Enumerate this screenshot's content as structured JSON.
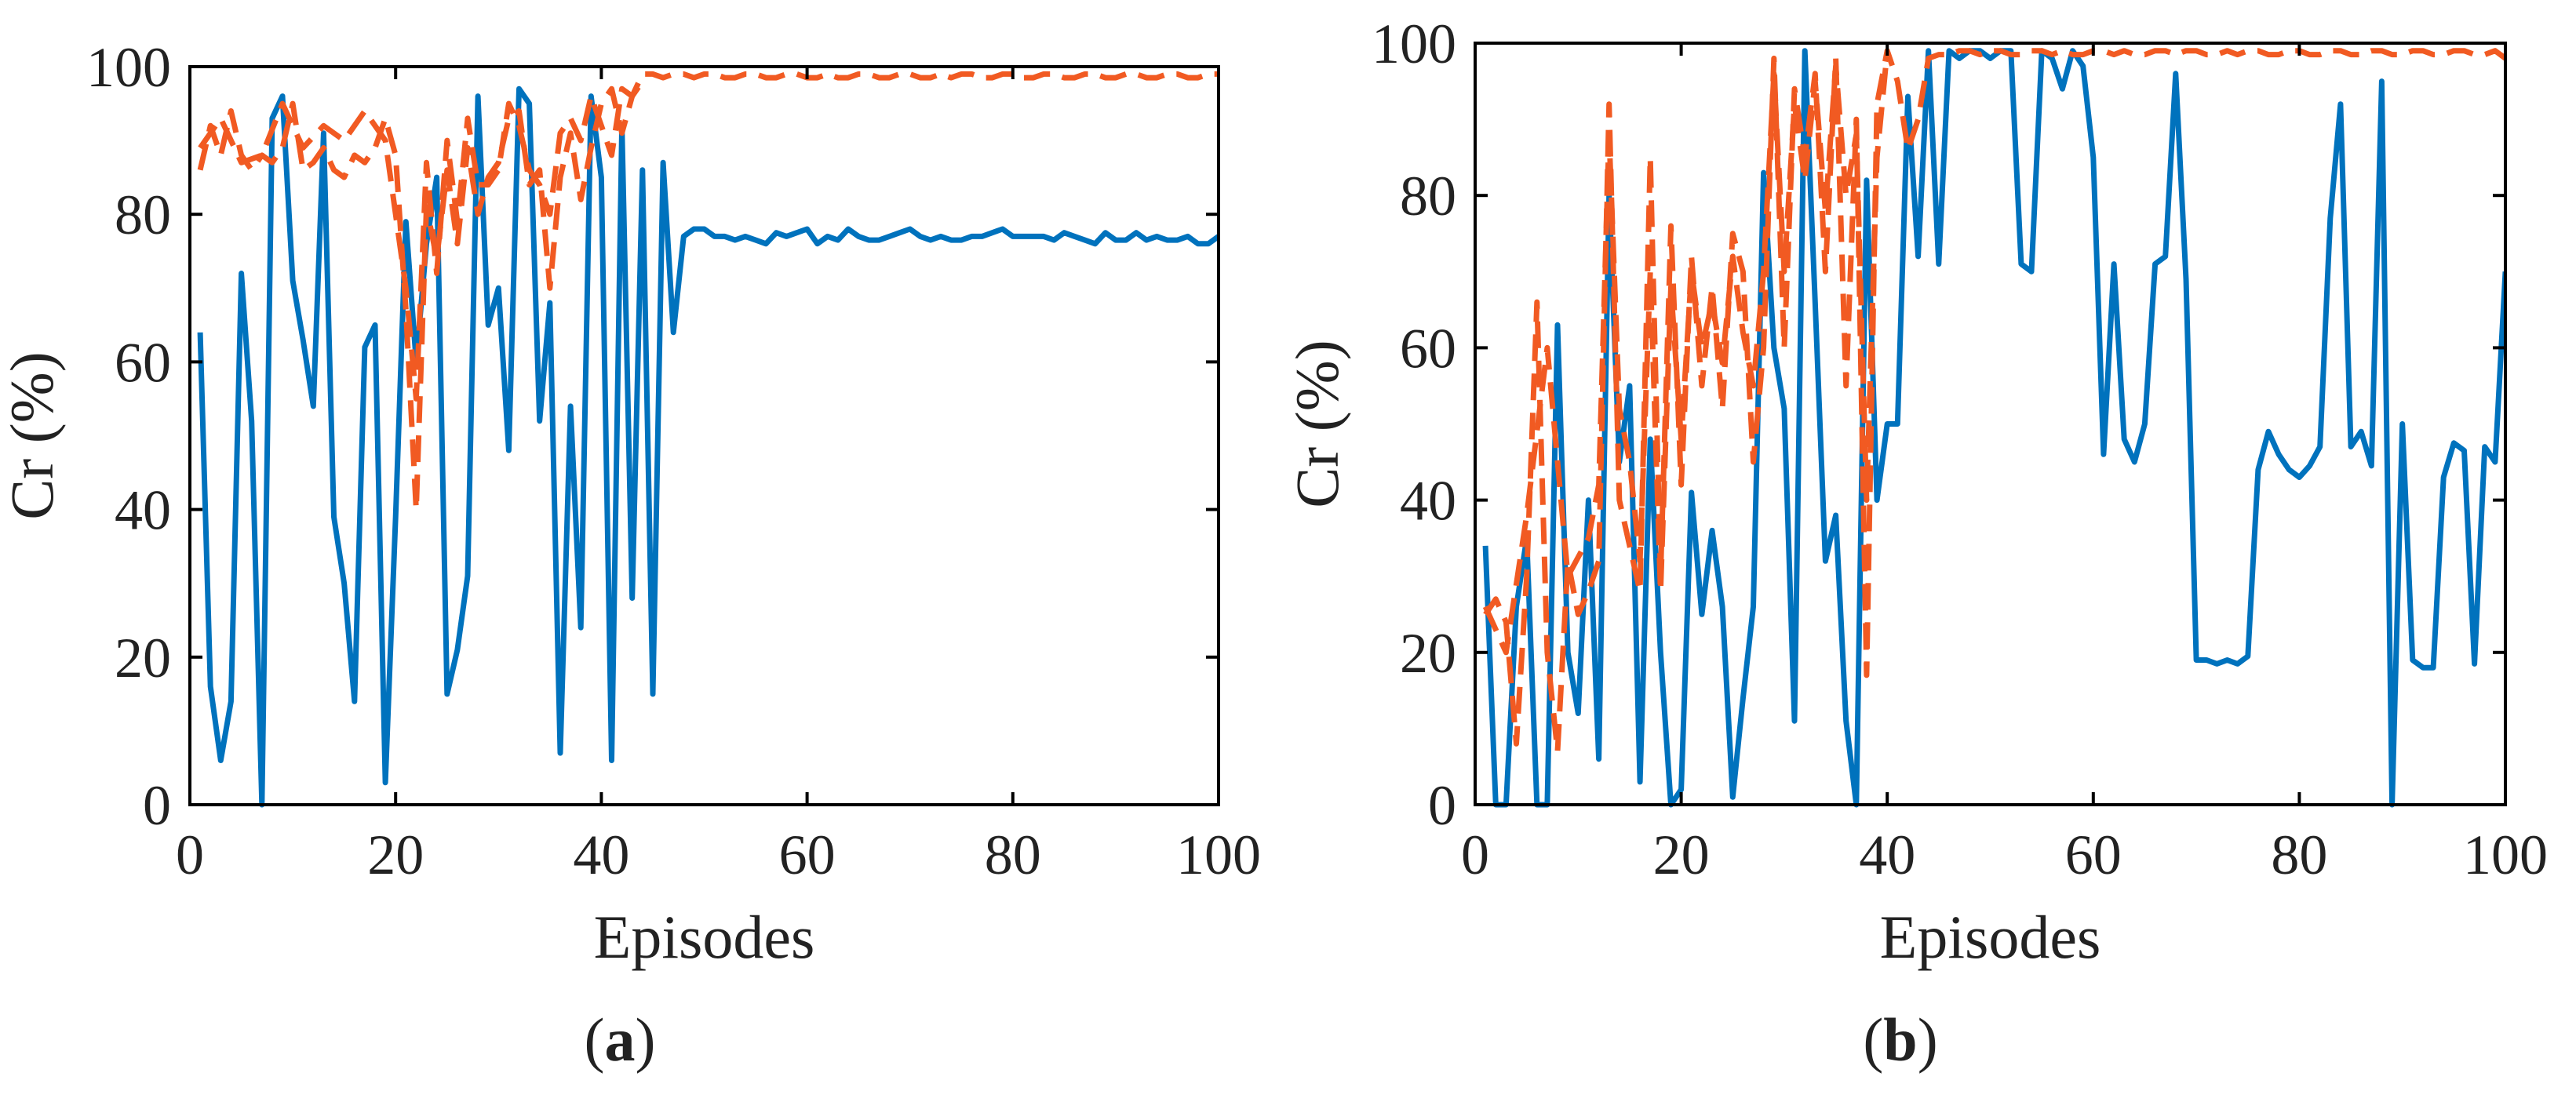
{
  "figure": {
    "panel_a_caption": {
      "open": "(",
      "letter": "a",
      "close": ")"
    },
    "panel_b_caption": {
      "open": "(",
      "letter": "b",
      "close": ")"
    }
  },
  "colors": {
    "blue": "#0072BD",
    "orange": "#F15A22",
    "axis": "#000000"
  },
  "chart_data": [
    {
      "type": "line",
      "panel": "a",
      "xlabel": "Episodes",
      "ylabel": "Cr (%)",
      "xlim": [
        0,
        100
      ],
      "ylim": [
        0,
        100
      ],
      "xticks": [
        0,
        20,
        40,
        60,
        80,
        100
      ],
      "yticks": [
        0,
        20,
        40,
        60,
        80,
        100
      ],
      "grid": false,
      "series": [
        {
          "name": "blue-solid",
          "color": "#0072BD",
          "style": "solid",
          "x": [
            1,
            2,
            3,
            4,
            5,
            6,
            7,
            8,
            9,
            10,
            11,
            12,
            13,
            14,
            15,
            16,
            17,
            18,
            19,
            20,
            21,
            22,
            23,
            24,
            25,
            26,
            27,
            28,
            29,
            30,
            31,
            32,
            33,
            34,
            35,
            36,
            37,
            38,
            39,
            40,
            41,
            42,
            43,
            44,
            45,
            46,
            47,
            48,
            49,
            50,
            51,
            52,
            53,
            54,
            55,
            56,
            57,
            58,
            59,
            60,
            61,
            62,
            63,
            64,
            65,
            66,
            67,
            68,
            69,
            70,
            71,
            72,
            73,
            74,
            75,
            76,
            77,
            78,
            79,
            80,
            81,
            82,
            83,
            84,
            85,
            86,
            87,
            88,
            89,
            90,
            91,
            92,
            93,
            94,
            95,
            96,
            97,
            98,
            99,
            100
          ],
          "y": [
            64,
            16,
            6,
            14,
            72,
            52,
            0,
            93,
            96,
            71,
            63,
            54,
            91,
            39,
            30,
            14,
            62,
            65,
            3,
            39,
            79,
            60,
            76,
            85,
            15,
            21,
            31,
            96,
            65,
            70,
            48,
            97,
            95,
            52,
            68,
            7,
            54,
            24,
            96,
            85,
            6,
            92,
            28,
            86,
            15,
            87,
            64,
            77,
            78,
            78,
            77,
            77,
            76.5,
            77,
            76.5,
            76,
            77.5,
            77,
            77.5,
            78,
            76,
            77,
            76.5,
            78,
            77,
            76.5,
            76.5,
            77,
            77.5,
            78,
            77,
            76.5,
            77,
            76.5,
            76.5,
            77,
            77,
            77.5,
            78,
            77,
            77,
            77,
            77,
            76.5,
            77.5,
            77,
            76.5,
            76,
            77.5,
            76.5,
            76.5,
            77.5,
            76.5,
            77,
            76.5,
            76.5,
            77,
            76,
            76,
            77
          ]
        },
        {
          "name": "orange-dashed-1",
          "color": "#F15A22",
          "style": "dashed",
          "x": [
            1,
            2,
            3,
            4,
            5,
            6,
            7,
            8,
            9,
            10,
            11,
            12,
            13,
            14,
            15,
            16,
            17,
            18,
            19,
            20,
            21,
            22,
            23,
            24,
            25,
            26,
            27,
            28,
            29,
            30,
            31,
            32,
            33,
            34,
            35,
            36,
            37,
            38,
            39,
            40,
            41,
            42,
            43,
            44,
            45,
            46,
            47,
            48,
            49,
            50,
            51,
            52,
            53,
            54,
            55,
            56,
            57,
            58,
            59,
            60,
            61,
            62,
            63,
            64,
            65,
            66,
            67,
            68,
            69,
            70,
            71,
            72,
            73,
            74,
            75,
            76,
            77,
            78,
            79,
            80,
            81,
            82,
            83,
            84,
            85,
            86,
            87,
            88,
            89,
            90,
            91,
            92,
            93,
            94,
            95,
            96,
            97,
            98,
            99,
            100
          ],
          "y": [
            86,
            92,
            88,
            94,
            88,
            86,
            88,
            87,
            89,
            95,
            86,
            87,
            89,
            86,
            85,
            88,
            87,
            89,
            93,
            88,
            67,
            40,
            81,
            74,
            86,
            76,
            89,
            80,
            85,
            87,
            93,
            94,
            84,
            86,
            70,
            85,
            91,
            82,
            89,
            95,
            97,
            91,
            96,
            99,
            99,
            98.5,
            99,
            99,
            98.5,
            99,
            99,
            98.5,
            98.5,
            99,
            99,
            98.5,
            98.5,
            99,
            99,
            98.5,
            98.5,
            99,
            98.5,
            98.5,
            99,
            99,
            98.5,
            98.5,
            99,
            99,
            98.5,
            98.5,
            99,
            98.5,
            99,
            99,
            98.5,
            98.5,
            99,
            99,
            98.5,
            98.5,
            99,
            99,
            98.5,
            98.5,
            99,
            99,
            98.5,
            98.5,
            99,
            99,
            98.5,
            98.5,
            99,
            99,
            98.5,
            98.5,
            99,
            99
          ]
        },
        {
          "name": "orange-dashed-2",
          "color": "#F15A22",
          "style": "dashed",
          "x": [
            1,
            3,
            5,
            7,
            9,
            11,
            13,
            15,
            17,
            19,
            21,
            22,
            23,
            24,
            25,
            26,
            27,
            28,
            29,
            30,
            31,
            32,
            33,
            34,
            35,
            36,
            37,
            38,
            39,
            40,
            41,
            42,
            43,
            44
          ],
          "y": [
            89,
            93,
            87,
            88,
            95,
            89,
            92,
            90,
            94,
            90,
            70,
            55,
            87,
            72,
            90,
            79,
            93,
            84,
            84,
            86,
            95,
            92,
            86,
            84,
            80,
            91,
            93,
            90,
            96,
            92,
            88,
            97,
            96,
            98
          ]
        }
      ]
    },
    {
      "type": "line",
      "panel": "b",
      "xlabel": "Episodes",
      "ylabel": "Cr (%)",
      "xlim": [
        0,
        100
      ],
      "ylim": [
        0,
        100
      ],
      "xticks": [
        0,
        20,
        40,
        60,
        80,
        100
      ],
      "yticks": [
        0,
        20,
        40,
        60,
        80,
        100
      ],
      "grid": false,
      "series": [
        {
          "name": "blue-solid",
          "color": "#0072BD",
          "style": "solid",
          "x": [
            1,
            2,
            3,
            4,
            5,
            6,
            7,
            8,
            9,
            10,
            11,
            12,
            13,
            14,
            15,
            16,
            17,
            18,
            19,
            20,
            21,
            22,
            23,
            24,
            25,
            26,
            27,
            28,
            29,
            30,
            31,
            32,
            33,
            34,
            35,
            36,
            37,
            38,
            39,
            40,
            41,
            42,
            43,
            44,
            45,
            46,
            47,
            48,
            49,
            50,
            51,
            52,
            53,
            54,
            55,
            56,
            57,
            58,
            59,
            60,
            61,
            62,
            63,
            64,
            65,
            66,
            67,
            68,
            69,
            70,
            71,
            72,
            73,
            74,
            75,
            76,
            77,
            78,
            79,
            80,
            81,
            82,
            83,
            84,
            85,
            86,
            87,
            88,
            89,
            90,
            91,
            92,
            93,
            94,
            95,
            96,
            97,
            98,
            99,
            100
          ],
          "y": [
            34,
            0,
            0,
            26,
            35,
            0,
            0,
            63,
            20,
            12,
            40,
            6,
            80,
            45,
            55,
            3,
            48,
            20,
            0,
            2,
            41,
            25,
            36,
            26,
            1,
            14,
            26,
            83,
            60,
            52,
            11,
            99,
            66,
            32,
            38,
            11,
            0,
            82,
            40,
            50,
            50,
            93,
            72,
            99,
            71,
            99,
            98,
            99,
            99,
            98,
            99,
            99,
            71,
            70,
            99,
            98,
            94,
            99,
            97,
            85,
            46,
            71,
            48,
            45,
            50,
            71,
            72,
            96,
            69,
            19,
            19,
            18.5,
            19,
            18.5,
            19.5,
            44,
            49,
            46,
            44,
            43,
            44.5,
            47,
            77,
            92,
            47,
            49,
            44.5,
            95,
            0,
            50,
            19,
            18,
            18,
            43,
            47.5,
            46.5,
            18.5,
            47,
            45,
            70
          ]
        },
        {
          "name": "orange-dashed-1",
          "color": "#F15A22",
          "style": "dashed",
          "x": [
            1,
            2,
            3,
            4,
            5,
            6,
            7,
            8,
            9,
            10,
            11,
            12,
            13,
            14,
            15,
            16,
            17,
            18,
            19,
            20,
            21,
            22,
            23,
            24,
            25,
            26,
            27,
            28,
            29,
            30,
            31,
            32,
            33,
            34,
            35,
            36,
            37,
            38,
            39,
            40,
            41,
            42,
            43,
            44,
            45,
            46,
            47,
            48,
            49,
            50,
            51,
            52,
            53,
            54,
            55,
            56,
            57,
            58,
            59,
            60,
            61,
            62,
            63,
            64,
            65,
            66,
            67,
            68,
            69,
            70,
            71,
            72,
            73,
            74,
            75,
            76,
            77,
            78,
            79,
            80,
            81,
            82,
            83,
            84,
            85,
            86,
            87,
            88,
            89,
            90,
            91,
            92,
            93,
            94,
            95,
            96,
            97,
            98,
            99,
            100
          ],
          "y": [
            25,
            27,
            24,
            8,
            30,
            66,
            20,
            7,
            32,
            25,
            28,
            32,
            92,
            40,
            34,
            28,
            85,
            30,
            76,
            42,
            72,
            55,
            68,
            52,
            75,
            70,
            45,
            60,
            98,
            60,
            94,
            85,
            96,
            70,
            98,
            55,
            90,
            17,
            92,
            99,
            95,
            86,
            90,
            98,
            98.5,
            98.5,
            99,
            99,
            98.5,
            99,
            99,
            98.5,
            98.5,
            99,
            99,
            98.5,
            99,
            98.5,
            98.5,
            99,
            99,
            98.5,
            99,
            98.5,
            98.5,
            99,
            99,
            98.5,
            99,
            99,
            98.5,
            98.5,
            99,
            98.5,
            99,
            99,
            98.5,
            98.5,
            99,
            99,
            98.5,
            98.5,
            99,
            99,
            98.5,
            98.5,
            99,
            99,
            98.5,
            98.5,
            99,
            99,
            98.5,
            98.5,
            99,
            99,
            98.5,
            98.5,
            99,
            98
          ]
        },
        {
          "name": "orange-dashed-2",
          "color": "#F15A22",
          "style": "dashed",
          "x": [
            1,
            3,
            5,
            7,
            9,
            11,
            12,
            13,
            14,
            15,
            16,
            17,
            18,
            19,
            20,
            21,
            22,
            23,
            24,
            25,
            26,
            27,
            28,
            29,
            30,
            31,
            32,
            33,
            34,
            35,
            36,
            37,
            38,
            39,
            40
          ],
          "y": [
            26,
            20,
            38,
            60,
            30,
            35,
            42,
            88,
            52,
            45,
            32,
            70,
            28,
            68,
            48,
            70,
            60,
            66,
            58,
            72,
            62,
            55,
            70,
            96,
            70,
            92,
            82,
            95,
            78,
            97,
            80,
            88,
            40,
            85,
            99
          ]
        }
      ]
    }
  ]
}
